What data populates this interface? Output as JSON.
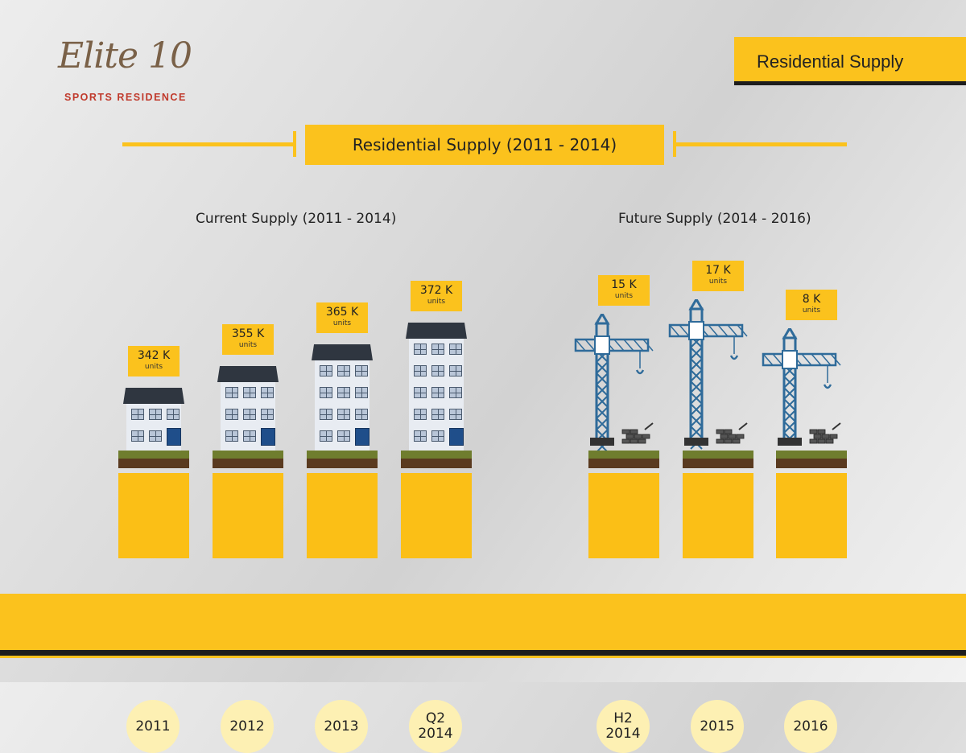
{
  "logo": {
    "name": "Elite 10",
    "subtitle": "SPORTS RESIDENCE"
  },
  "header": {
    "tab_label": "Residential Supply"
  },
  "title": "Residential Supply (2011 - 2014)",
  "sections": {
    "current": "Current Supply (2011 - 2014)",
    "future": "Future Supply (2014 - 2016)"
  },
  "current_supply": [
    {
      "year": "2011",
      "value": "342 K",
      "unit": "units",
      "floors": 2
    },
    {
      "year": "2012",
      "value": "355 K",
      "unit": "units",
      "floors": 3
    },
    {
      "year": "2013",
      "value": "365 K",
      "unit": "units",
      "floors": 4
    },
    {
      "year": "Q2\n2014",
      "value": "372 K",
      "unit": "units",
      "floors": 5
    }
  ],
  "future_supply": [
    {
      "year": "H2\n2014",
      "value": "15 K",
      "unit": "units"
    },
    {
      "year": "2015",
      "value": "17 K",
      "unit": "units"
    },
    {
      "year": "2016",
      "value": "8 K",
      "unit": "units"
    }
  ],
  "colors": {
    "accent": "#fbc21d",
    "dark": "#1d1d1d",
    "crane": "#2f6b9a",
    "building_roof": "#2f3640"
  },
  "icons": {
    "building": "apartment-building-icon",
    "crane": "tower-crane-icon",
    "bricks": "brick-pile-icon"
  }
}
